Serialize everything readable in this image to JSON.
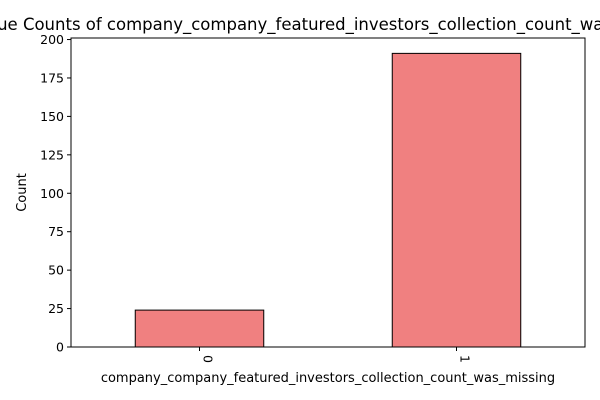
{
  "chart_data": {
    "type": "bar",
    "title": "Value Counts of company_company_featured_investors_collection_count_was_missing",
    "xlabel": "company_company_featured_investors_collection_count_was_missing",
    "ylabel": "Count",
    "categories": [
      "0",
      "1"
    ],
    "values": [
      24,
      191
    ],
    "ylim": [
      0,
      201
    ],
    "yticks": [
      0,
      25,
      50,
      75,
      100,
      125,
      150,
      175,
      200
    ],
    "bar_color": "#f08080",
    "edge_color": "#000000",
    "grid": false,
    "legend": "none"
  }
}
